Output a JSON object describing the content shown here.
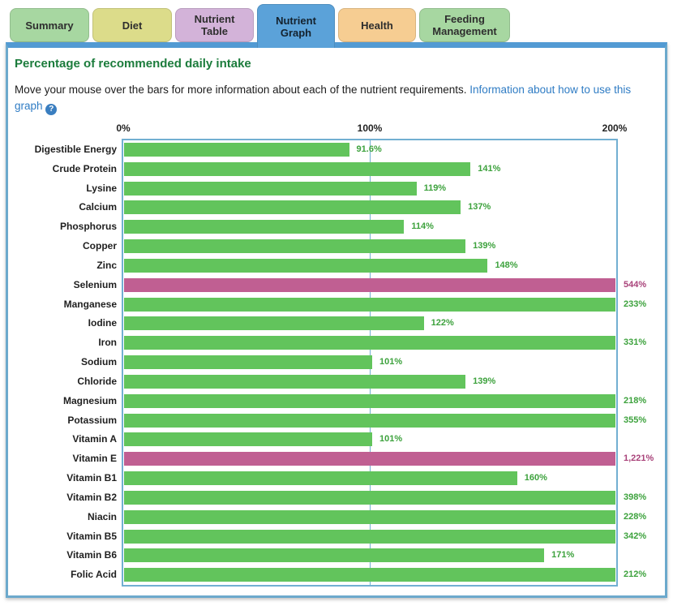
{
  "tabs": [
    {
      "label": "Summary",
      "color": "#a7d7a1",
      "active": false
    },
    {
      "label": "Diet",
      "color": "#dcdc8a",
      "active": false
    },
    {
      "label": "Nutrient Table",
      "color": "#d3b3d9",
      "active": false
    },
    {
      "label": "Nutrient Graph",
      "color": "#5ba2d9",
      "active": true
    },
    {
      "label": "Health",
      "color": "#f6cd92",
      "active": false
    },
    {
      "label": "Feeding Management",
      "color": "#a7d7a1",
      "active": false
    }
  ],
  "panel": {
    "title": "Percentage of recommended daily intake"
  },
  "description": {
    "text": "Move your mouse over the bars for more information about each of the nutrient requirements. ",
    "link": "Information about how to use this graph",
    "help_icon_glyph": "?"
  },
  "chart_data": {
    "type": "bar",
    "orientation": "horizontal",
    "title": "Percentage of recommended daily intake",
    "xlim": [
      0,
      200
    ],
    "axis_ticks": [
      "0%",
      "100%",
      "200%"
    ],
    "gridline_at": 100,
    "clip_at": 200,
    "bar_color_normal": "#62c45c",
    "bar_color_excess": "#c05f92",
    "value_color_normal": "#3da23d",
    "value_color_excess": "#a9437a",
    "bars": [
      {
        "name": "Digestible Energy",
        "value": 91.6,
        "label": "91.6%",
        "excess": false
      },
      {
        "name": "Crude Protein",
        "value": 141,
        "label": "141%",
        "excess": false
      },
      {
        "name": "Lysine",
        "value": 119,
        "label": "119%",
        "excess": false
      },
      {
        "name": "Calcium",
        "value": 137,
        "label": "137%",
        "excess": false
      },
      {
        "name": "Phosphorus",
        "value": 114,
        "label": "114%",
        "excess": false
      },
      {
        "name": "Copper",
        "value": 139,
        "label": "139%",
        "excess": false
      },
      {
        "name": "Zinc",
        "value": 148,
        "label": "148%",
        "excess": false
      },
      {
        "name": "Selenium",
        "value": 544,
        "label": "544%",
        "excess": true
      },
      {
        "name": "Manganese",
        "value": 233,
        "label": "233%",
        "excess": false
      },
      {
        "name": "Iodine",
        "value": 122,
        "label": "122%",
        "excess": false
      },
      {
        "name": "Iron",
        "value": 331,
        "label": "331%",
        "excess": false
      },
      {
        "name": "Sodium",
        "value": 101,
        "label": "101%",
        "excess": false
      },
      {
        "name": "Chloride",
        "value": 139,
        "label": "139%",
        "excess": false
      },
      {
        "name": "Magnesium",
        "value": 218,
        "label": "218%",
        "excess": false
      },
      {
        "name": "Potassium",
        "value": 355,
        "label": "355%",
        "excess": false
      },
      {
        "name": "Vitamin A",
        "value": 101,
        "label": "101%",
        "excess": false
      },
      {
        "name": "Vitamin E",
        "value": 1221,
        "label": "1,221%",
        "excess": true
      },
      {
        "name": "Vitamin B1",
        "value": 160,
        "label": "160%",
        "excess": false
      },
      {
        "name": "Vitamin B2",
        "value": 398,
        "label": "398%",
        "excess": false
      },
      {
        "name": "Niacin",
        "value": 228,
        "label": "228%",
        "excess": false
      },
      {
        "name": "Vitamin B5",
        "value": 342,
        "label": "342%",
        "excess": false
      },
      {
        "name": "Vitamin B6",
        "value": 171,
        "label": "171%",
        "excess": false
      },
      {
        "name": "Folic Acid",
        "value": 212,
        "label": "212%",
        "excess": false
      }
    ]
  },
  "layout_colors": {
    "panel_border": "#6ca9cc",
    "panel_top_band": "#529ad3",
    "plot_border": "#72afd2",
    "title_green": "#1c7c3c",
    "link_blue": "#2f7cc4"
  }
}
